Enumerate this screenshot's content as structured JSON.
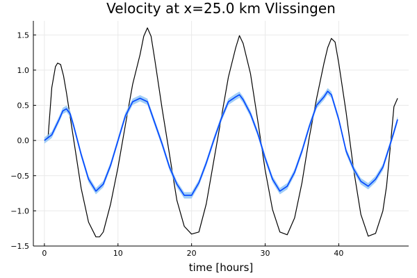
{
  "chart_data": {
    "type": "line",
    "title": "Velocity at x=25.0 km Vlissingen",
    "xlabel": "time [hours]",
    "ylabel": "",
    "xlim": [
      -1.5,
      49.5
    ],
    "ylim": [
      -1.5,
      1.7
    ],
    "x_ticks": [
      0,
      10,
      20,
      30,
      40
    ],
    "x_tick_labels": [
      "0",
      "10",
      "20",
      "30",
      "40"
    ],
    "y_ticks": [
      -1.5,
      -1.0,
      -0.5,
      0.0,
      0.5,
      1.0,
      1.5
    ],
    "y_tick_labels": [
      "−1.5",
      "−1.0",
      "−0.5",
      "0.0",
      "0.5",
      "1.0",
      "1.5"
    ],
    "grid": true,
    "legend": "none",
    "colors": {
      "black_series": "#000000",
      "blue_series": "#0044ff",
      "band": "#89c2f5"
    },
    "series": [
      {
        "color": "#000000",
        "points": [
          [
            0,
            0.0
          ],
          [
            0.5,
            0.05
          ],
          [
            1.0,
            0.75
          ],
          [
            1.5,
            1.05
          ],
          [
            1.8,
            1.1
          ],
          [
            2.2,
            1.08
          ],
          [
            2.6,
            0.92
          ],
          [
            3,
            0.68
          ],
          [
            4,
            0.0
          ],
          [
            5,
            -0.68
          ],
          [
            6,
            -1.16
          ],
          [
            7,
            -1.37
          ],
          [
            7.5,
            -1.37
          ],
          [
            8,
            -1.3
          ],
          [
            9,
            -0.9
          ],
          [
            10,
            -0.38
          ],
          [
            11,
            0.22
          ],
          [
            12,
            0.8
          ],
          [
            13,
            1.22
          ],
          [
            13.5,
            1.48
          ],
          [
            14,
            1.6
          ],
          [
            14.5,
            1.48
          ],
          [
            15,
            1.15
          ],
          [
            16,
            0.45
          ],
          [
            17,
            -0.2
          ],
          [
            18,
            -0.85
          ],
          [
            19,
            -1.22
          ],
          [
            20,
            -1.33
          ],
          [
            21,
            -1.3
          ],
          [
            22,
            -0.9
          ],
          [
            23,
            -0.3
          ],
          [
            24,
            0.3
          ],
          [
            25,
            0.9
          ],
          [
            26,
            1.32
          ],
          [
            26.5,
            1.49
          ],
          [
            27,
            1.38
          ],
          [
            28,
            0.95
          ],
          [
            29,
            0.28
          ],
          [
            30,
            -0.42
          ],
          [
            31,
            -0.98
          ],
          [
            32,
            -1.3
          ],
          [
            33,
            -1.34
          ],
          [
            34,
            -1.1
          ],
          [
            35,
            -0.6
          ],
          [
            36,
            0.05
          ],
          [
            37,
            0.6
          ],
          [
            38,
            1.1
          ],
          [
            38.5,
            1.32
          ],
          [
            39,
            1.45
          ],
          [
            39.5,
            1.4
          ],
          [
            40,
            1.1
          ],
          [
            41,
            0.4
          ],
          [
            42,
            -0.4
          ],
          [
            43,
            -1.05
          ],
          [
            44,
            -1.36
          ],
          [
            45,
            -1.32
          ],
          [
            46,
            -1.0
          ],
          [
            46.5,
            -0.65
          ],
          [
            47,
            -0.1
          ],
          [
            47.5,
            0.48
          ],
          [
            48,
            0.6
          ]
        ]
      },
      {
        "color": "#0044ff",
        "band_halfwidth": 0.045,
        "points": [
          [
            0,
            0.0
          ],
          [
            1,
            0.08
          ],
          [
            2,
            0.3
          ],
          [
            2.5,
            0.42
          ],
          [
            3,
            0.45
          ],
          [
            3.5,
            0.38
          ],
          [
            4,
            0.2
          ],
          [
            5,
            -0.2
          ],
          [
            6,
            -0.55
          ],
          [
            7,
            -0.72
          ],
          [
            8,
            -0.62
          ],
          [
            9,
            -0.35
          ],
          [
            10,
            0.0
          ],
          [
            11,
            0.35
          ],
          [
            12,
            0.55
          ],
          [
            13,
            0.6
          ],
          [
            14,
            0.55
          ],
          [
            15,
            0.25
          ],
          [
            16,
            -0.05
          ],
          [
            17,
            -0.38
          ],
          [
            18,
            -0.62
          ],
          [
            19,
            -0.78
          ],
          [
            20,
            -0.78
          ],
          [
            21,
            -0.6
          ],
          [
            22,
            -0.32
          ],
          [
            23,
            0.0
          ],
          [
            24,
            0.3
          ],
          [
            25,
            0.55
          ],
          [
            26,
            0.62
          ],
          [
            26.5,
            0.65
          ],
          [
            27,
            0.58
          ],
          [
            28,
            0.38
          ],
          [
            29,
            0.1
          ],
          [
            30,
            -0.25
          ],
          [
            31,
            -0.55
          ],
          [
            32,
            -0.72
          ],
          [
            33,
            -0.65
          ],
          [
            34,
            -0.45
          ],
          [
            35,
            -0.15
          ],
          [
            36,
            0.2
          ],
          [
            37,
            0.5
          ],
          [
            38,
            0.62
          ],
          [
            38.5,
            0.7
          ],
          [
            39,
            0.65
          ],
          [
            40,
            0.3
          ],
          [
            41,
            -0.15
          ],
          [
            42,
            -0.4
          ],
          [
            43,
            -0.58
          ],
          [
            44,
            -0.65
          ],
          [
            45,
            -0.55
          ],
          [
            46,
            -0.38
          ],
          [
            47,
            -0.05
          ],
          [
            47.5,
            0.12
          ],
          [
            48,
            0.3
          ]
        ]
      }
    ]
  }
}
